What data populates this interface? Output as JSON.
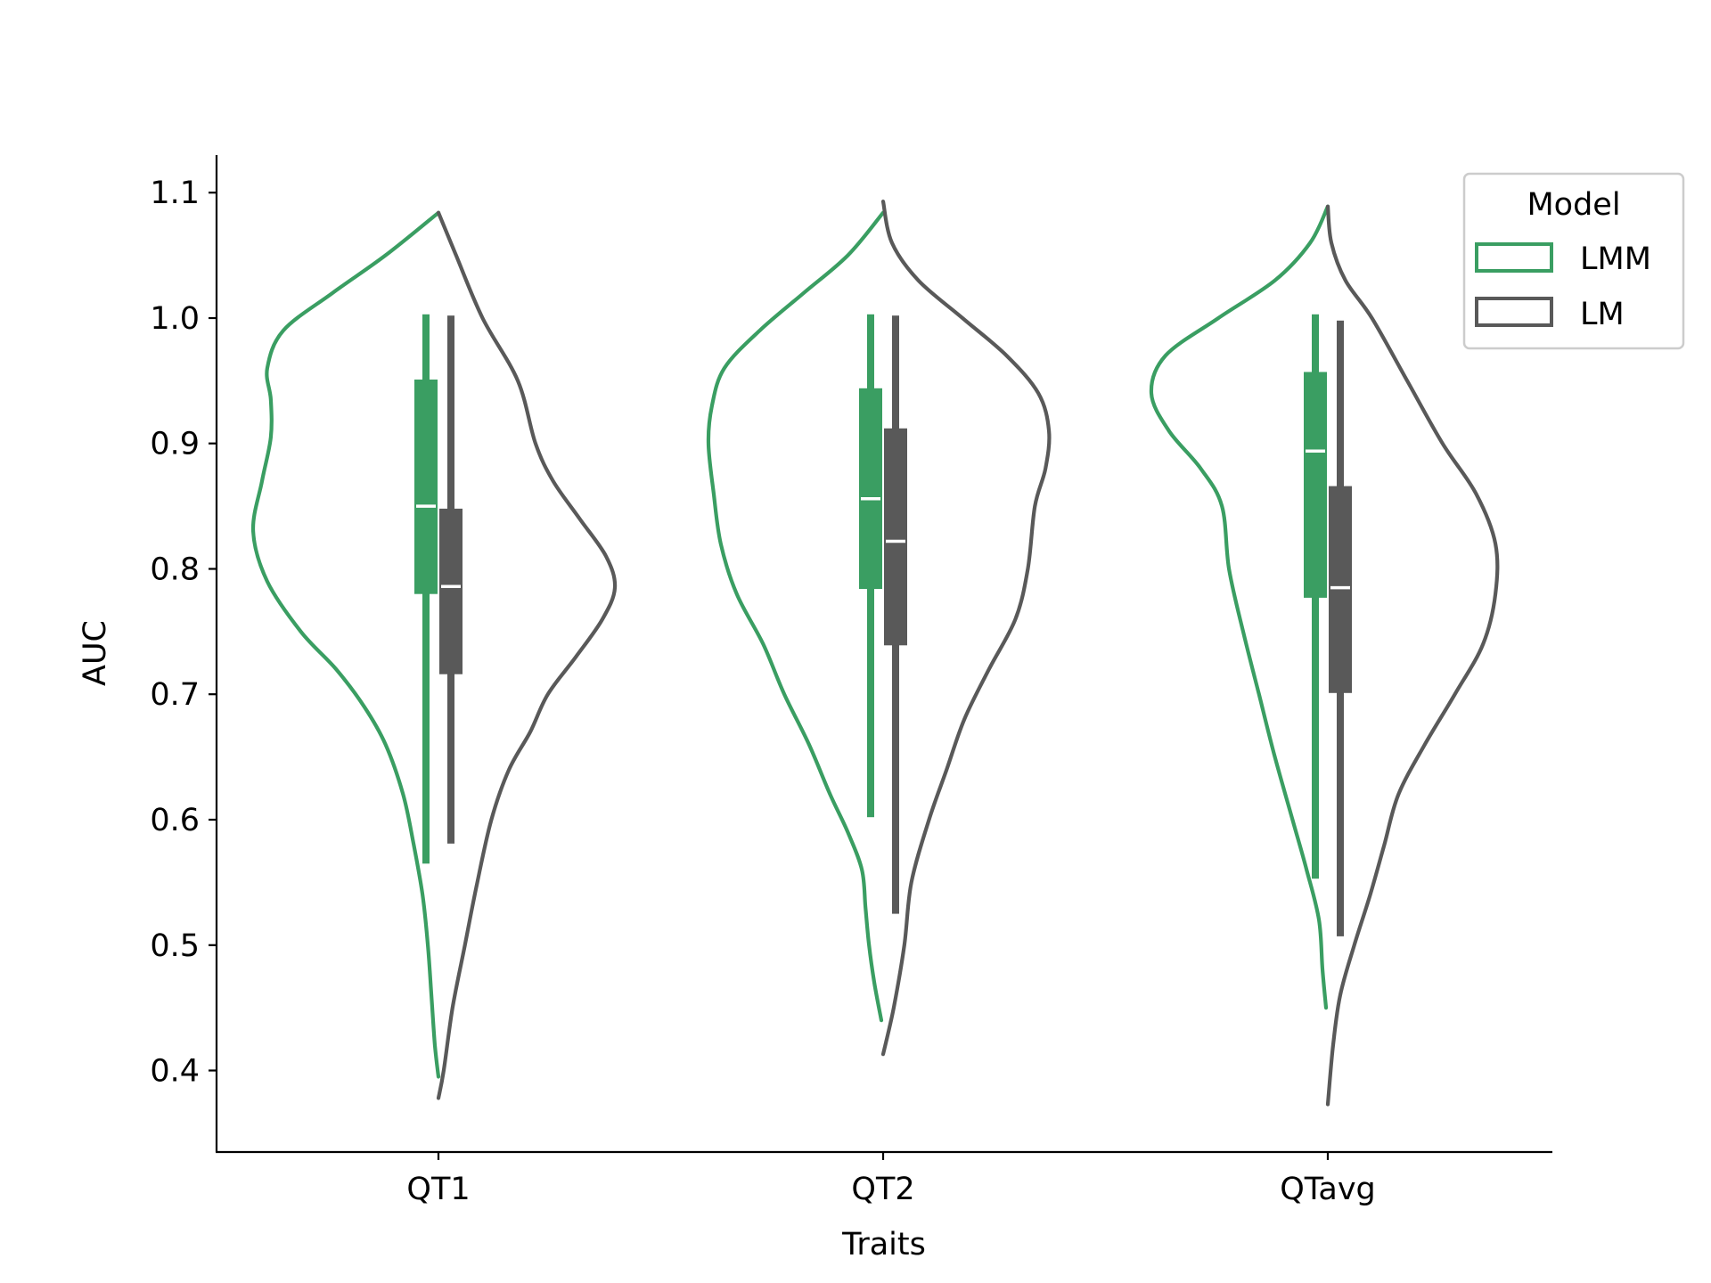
{
  "chart_data": {
    "type": "violin",
    "xlabel": "Traits",
    "ylabel": "AUC",
    "categories": [
      "QT1",
      "QT2",
      "QTavg"
    ],
    "ylim": [
      0.335,
      1.13
    ],
    "yticks": [
      0.4,
      0.5,
      0.6,
      0.7,
      0.8,
      0.9,
      1.0,
      1.1
    ],
    "ytick_labels": [
      "0.4",
      "0.5",
      "0.6",
      "0.7",
      "0.8",
      "0.9",
      "1.0",
      "1.1"
    ],
    "grid": false,
    "split": true,
    "legend": {
      "title": "Model",
      "position": "top-right",
      "entries": [
        "LMM",
        "LM"
      ]
    },
    "series": [
      {
        "name": "LMM",
        "color": "#3a9e62",
        "side": "left",
        "violins": [
          {
            "category": "QT1",
            "box": {
              "whisker_low": 0.565,
              "q1": 0.78,
              "median": 0.85,
              "q3": 0.951,
              "whisker_high": 1.003
            },
            "profile": [
              [
                1.084,
                0.0
              ],
              [
                1.05,
                0.3
              ],
              [
                1.02,
                0.6
              ],
              [
                0.99,
                0.88
              ],
              [
                0.96,
                0.97
              ],
              [
                0.935,
                0.95
              ],
              [
                0.905,
                0.95
              ],
              [
                0.87,
                1.0
              ],
              [
                0.83,
                1.05
              ],
              [
                0.79,
                0.97
              ],
              [
                0.75,
                0.78
              ],
              [
                0.72,
                0.58
              ],
              [
                0.69,
                0.42
              ],
              [
                0.66,
                0.3
              ],
              [
                0.62,
                0.2
              ],
              [
                0.58,
                0.14
              ],
              [
                0.54,
                0.09
              ],
              [
                0.5,
                0.06
              ],
              [
                0.46,
                0.04
              ],
              [
                0.42,
                0.02
              ],
              [
                0.395,
                0.0
              ]
            ]
          },
          {
            "category": "QT2",
            "box": {
              "whisker_low": 0.602,
              "q1": 0.784,
              "median": 0.856,
              "q3": 0.944,
              "whisker_high": 1.003
            },
            "profile": [
              [
                1.084,
                0.0
              ],
              [
                1.05,
                0.2
              ],
              [
                1.02,
                0.45
              ],
              [
                0.99,
                0.7
              ],
              [
                0.96,
                0.9
              ],
              [
                0.93,
                0.97
              ],
              [
                0.9,
                0.99
              ],
              [
                0.86,
                0.96
              ],
              [
                0.82,
                0.92
              ],
              [
                0.78,
                0.83
              ],
              [
                0.74,
                0.68
              ],
              [
                0.7,
                0.56
              ],
              [
                0.66,
                0.42
              ],
              [
                0.62,
                0.3
              ],
              [
                0.59,
                0.2
              ],
              [
                0.56,
                0.12
              ],
              [
                0.53,
                0.1
              ],
              [
                0.5,
                0.08
              ],
              [
                0.47,
                0.05
              ],
              [
                0.44,
                0.01
              ]
            ]
          },
          {
            "category": "QTavg",
            "box": {
              "whisker_low": 0.553,
              "q1": 0.777,
              "median": 0.894,
              "q3": 0.957,
              "whisker_high": 1.003
            },
            "profile": [
              [
                1.089,
                0.0
              ],
              [
                1.06,
                0.1
              ],
              [
                1.03,
                0.3
              ],
              [
                1.0,
                0.62
              ],
              [
                0.97,
                0.92
              ],
              [
                0.94,
                1.0
              ],
              [
                0.91,
                0.9
              ],
              [
                0.88,
                0.72
              ],
              [
                0.85,
                0.6
              ],
              [
                0.8,
                0.56
              ],
              [
                0.75,
                0.48
              ],
              [
                0.7,
                0.39
              ],
              [
                0.65,
                0.3
              ],
              [
                0.6,
                0.2
              ],
              [
                0.56,
                0.12
              ],
              [
                0.52,
                0.05
              ],
              [
                0.48,
                0.03
              ],
              [
                0.45,
                0.01
              ]
            ]
          }
        ]
      },
      {
        "name": "LM",
        "color": "#595959",
        "side": "right",
        "violins": [
          {
            "category": "QT1",
            "box": {
              "whisker_low": 0.581,
              "q1": 0.716,
              "median": 0.786,
              "q3": 0.848,
              "whisker_high": 1.002
            },
            "profile": [
              [
                1.084,
                0.0
              ],
              [
                1.05,
                0.1
              ],
              [
                1.0,
                0.25
              ],
              [
                0.95,
                0.45
              ],
              [
                0.9,
                0.55
              ],
              [
                0.87,
                0.65
              ],
              [
                0.84,
                0.8
              ],
              [
                0.81,
                0.95
              ],
              [
                0.785,
                1.0
              ],
              [
                0.76,
                0.93
              ],
              [
                0.73,
                0.78
              ],
              [
                0.7,
                0.62
              ],
              [
                0.67,
                0.52
              ],
              [
                0.64,
                0.4
              ],
              [
                0.6,
                0.3
              ],
              [
                0.55,
                0.22
              ],
              [
                0.5,
                0.15
              ],
              [
                0.45,
                0.08
              ],
              [
                0.4,
                0.03
              ],
              [
                0.378,
                0.0
              ]
            ]
          },
          {
            "category": "QT2",
            "box": {
              "whisker_low": 0.525,
              "q1": 0.739,
              "median": 0.822,
              "q3": 0.912,
              "whisker_high": 1.002
            },
            "profile": [
              [
                1.093,
                0.0
              ],
              [
                1.06,
                0.05
              ],
              [
                1.03,
                0.2
              ],
              [
                1.0,
                0.45
              ],
              [
                0.97,
                0.7
              ],
              [
                0.94,
                0.88
              ],
              [
                0.91,
                0.94
              ],
              [
                0.88,
                0.92
              ],
              [
                0.85,
                0.86
              ],
              [
                0.8,
                0.82
              ],
              [
                0.76,
                0.75
              ],
              [
                0.72,
                0.6
              ],
              [
                0.68,
                0.46
              ],
              [
                0.64,
                0.36
              ],
              [
                0.6,
                0.26
              ],
              [
                0.55,
                0.16
              ],
              [
                0.5,
                0.12
              ],
              [
                0.45,
                0.06
              ],
              [
                0.413,
                0.0
              ]
            ]
          },
          {
            "category": "QTavg",
            "box": {
              "whisker_low": 0.507,
              "q1": 0.701,
              "median": 0.785,
              "q3": 0.866,
              "whisker_high": 0.998
            },
            "profile": [
              [
                1.089,
                0.0
              ],
              [
                1.06,
                0.02
              ],
              [
                1.03,
                0.1
              ],
              [
                1.0,
                0.25
              ],
              [
                0.95,
                0.45
              ],
              [
                0.9,
                0.65
              ],
              [
                0.86,
                0.84
              ],
              [
                0.82,
                0.95
              ],
              [
                0.78,
                0.95
              ],
              [
                0.74,
                0.88
              ],
              [
                0.7,
                0.72
              ],
              [
                0.66,
                0.55
              ],
              [
                0.62,
                0.4
              ],
              [
                0.58,
                0.32
              ],
              [
                0.54,
                0.24
              ],
              [
                0.5,
                0.15
              ],
              [
                0.46,
                0.07
              ],
              [
                0.42,
                0.03
              ],
              [
                0.373,
                0.0
              ]
            ]
          }
        ]
      }
    ]
  }
}
